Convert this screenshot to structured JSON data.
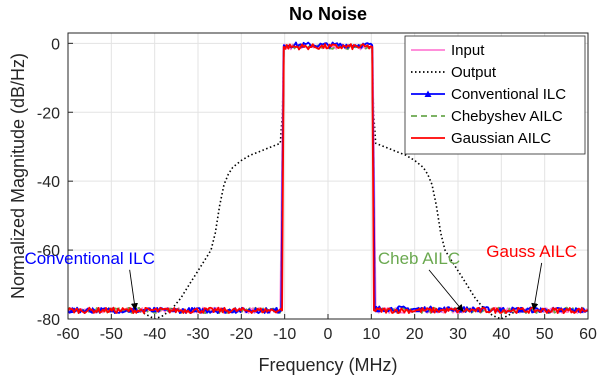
{
  "chart_data": {
    "type": "line",
    "title": "No Noise",
    "xlabel": "Frequency (MHz)",
    "ylabel": "Normalized Magnitude (dB/Hz)",
    "xlim": [
      -60,
      60
    ],
    "ylim": [
      -80,
      3
    ],
    "xticks": [
      -60,
      -50,
      -40,
      -30,
      -20,
      -10,
      0,
      10,
      20,
      30,
      40,
      50,
      60
    ],
    "yticks": [
      -80,
      -60,
      -40,
      -20,
      0
    ],
    "grid": true,
    "legend_position": "top-right",
    "series": [
      {
        "name": "Input",
        "color": "#ff7fd4",
        "style": "solid",
        "points": [
          [
            -60,
            -77.5
          ],
          [
            -11,
            -77.5
          ],
          [
            -10.3,
            -1
          ],
          [
            10.3,
            -1
          ],
          [
            11,
            -77.5
          ],
          [
            60,
            -77.5
          ]
        ]
      },
      {
        "name": "Output",
        "color": "#000000",
        "style": "dotted",
        "points": [
          [
            -60,
            -77.5
          ],
          [
            -43,
            -78
          ],
          [
            -40,
            -80
          ],
          [
            -38,
            -79
          ],
          [
            -36,
            -77
          ],
          [
            -34,
            -74
          ],
          [
            -32,
            -70
          ],
          [
            -30,
            -66
          ],
          [
            -28,
            -62
          ],
          [
            -27,
            -60
          ],
          [
            -26,
            -55
          ],
          [
            -25,
            -47
          ],
          [
            -24,
            -41
          ],
          [
            -23,
            -38
          ],
          [
            -22,
            -36
          ],
          [
            -20,
            -34
          ],
          [
            -18,
            -32.5
          ],
          [
            -16,
            -31.5
          ],
          [
            -14,
            -30.5
          ],
          [
            -12,
            -29.5
          ],
          [
            -11,
            -29
          ],
          [
            -10.5,
            -20
          ],
          [
            -10.2,
            -1
          ],
          [
            10.2,
            -1
          ],
          [
            10.5,
            -20
          ],
          [
            11,
            -29
          ],
          [
            12,
            -29.5
          ],
          [
            14,
            -30.5
          ],
          [
            16,
            -31.5
          ],
          [
            18,
            -32.5
          ],
          [
            20,
            -34
          ],
          [
            22,
            -36
          ],
          [
            23,
            -38
          ],
          [
            24,
            -41
          ],
          [
            25,
            -47
          ],
          [
            26,
            -55
          ],
          [
            27,
            -60
          ],
          [
            28,
            -62
          ],
          [
            30,
            -66
          ],
          [
            32,
            -70
          ],
          [
            34,
            -74
          ],
          [
            36,
            -77
          ],
          [
            38,
            -79
          ],
          [
            40,
            -80
          ],
          [
            43,
            -78
          ],
          [
            60,
            -77.5
          ]
        ]
      },
      {
        "name": "Conventional ILC",
        "color": "#0000ff",
        "style": "solid-marker",
        "points": [
          [
            -60,
            -77.5
          ],
          [
            -10.8,
            -77.5
          ],
          [
            -10.2,
            -0.5
          ],
          [
            10.2,
            -0.5
          ],
          [
            10.8,
            -77
          ],
          [
            60,
            -77.5
          ]
        ]
      },
      {
        "name": "Chebyshev AILC",
        "color": "#6aa84f",
        "style": "dashed",
        "points": [
          [
            -60,
            -77.5
          ],
          [
            -10.8,
            -77.5
          ],
          [
            -10.2,
            -1
          ],
          [
            10.2,
            -1
          ],
          [
            10.8,
            -77.5
          ],
          [
            60,
            -77.5
          ]
        ]
      },
      {
        "name": "Gaussian AILC",
        "color": "#ff0000",
        "style": "solid",
        "points": [
          [
            -60,
            -77.5
          ],
          [
            -10.6,
            -77.5
          ],
          [
            -10.2,
            -1
          ],
          [
            10.2,
            -1
          ],
          [
            10.6,
            -77.5
          ],
          [
            60,
            -77.5
          ]
        ]
      }
    ],
    "annotations": [
      {
        "text": "Conventional ILC",
        "color": "#0000ff",
        "text_at": [
          -55,
          -64
        ],
        "arrow_to": [
          -44.5,
          -77
        ]
      },
      {
        "text": "Cheb AILC",
        "color": "#6aa84f",
        "text_at": [
          21,
          -64
        ],
        "arrow_to": [
          31,
          -77.5
        ]
      },
      {
        "text": "Gauss AILC",
        "color": "#ff0000",
        "text_at": [
          47,
          -62
        ],
        "arrow_to": [
          47.5,
          -77
        ]
      }
    ]
  }
}
